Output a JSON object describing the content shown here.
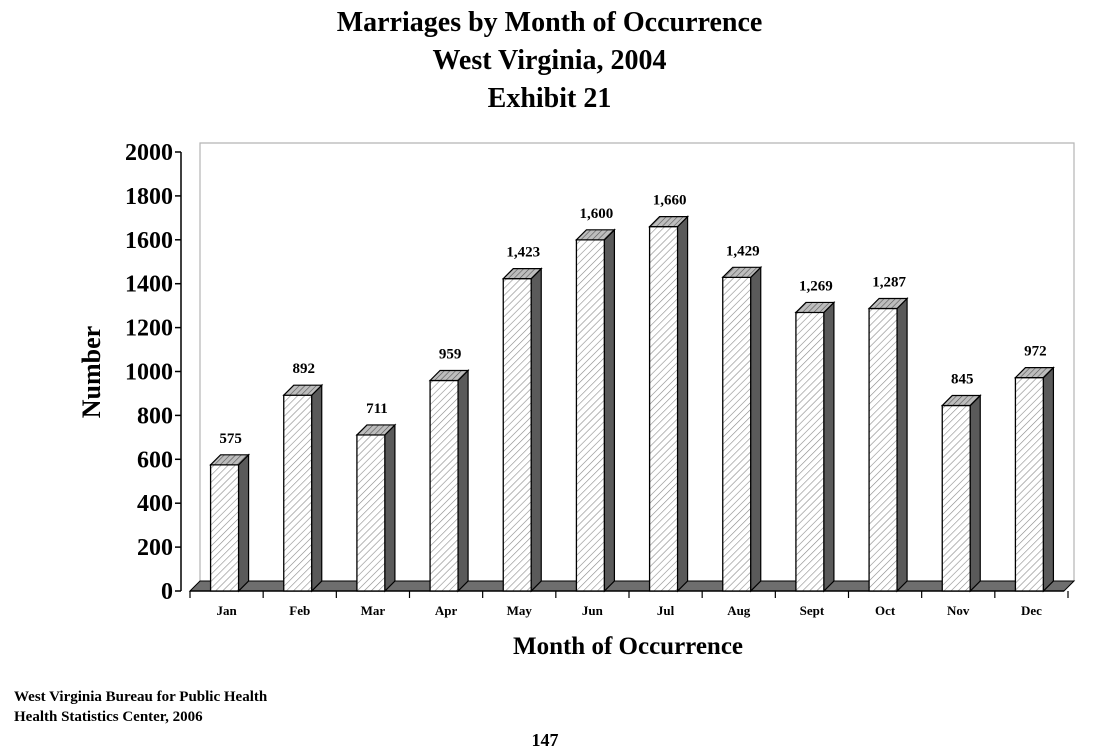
{
  "chart_data": {
    "type": "bar",
    "title": "Marriages by Month of Occurrence",
    "subtitle": "West Virginia, 2004",
    "exhibit": "Exhibit 21",
    "xlabel": "Month of Occurrence",
    "ylabel": "Number",
    "ylim": [
      0,
      2000
    ],
    "yticks": [
      0,
      200,
      400,
      600,
      800,
      1000,
      1200,
      1400,
      1600,
      1800,
      2000
    ],
    "categories": [
      "Jan",
      "Feb",
      "Mar",
      "Apr",
      "May",
      "Jun",
      "Jul",
      "Aug",
      "Sept",
      "Oct",
      "Nov",
      "Dec"
    ],
    "values": [
      575,
      892,
      711,
      959,
      1423,
      1600,
      1660,
      1429,
      1269,
      1287,
      845,
      972
    ],
    "data_labels": [
      "575",
      "892",
      "711",
      "959",
      "1,423",
      "1,600",
      "1,660",
      "1,429",
      "1,269",
      "1,287",
      "845",
      "972"
    ],
    "grid": false,
    "style": "3d-hatched-bars"
  },
  "footer": {
    "source_line1": "West Virginia Bureau for Public Health",
    "source_line2": "Health Statistics Center, 2006",
    "page_number": "147"
  }
}
